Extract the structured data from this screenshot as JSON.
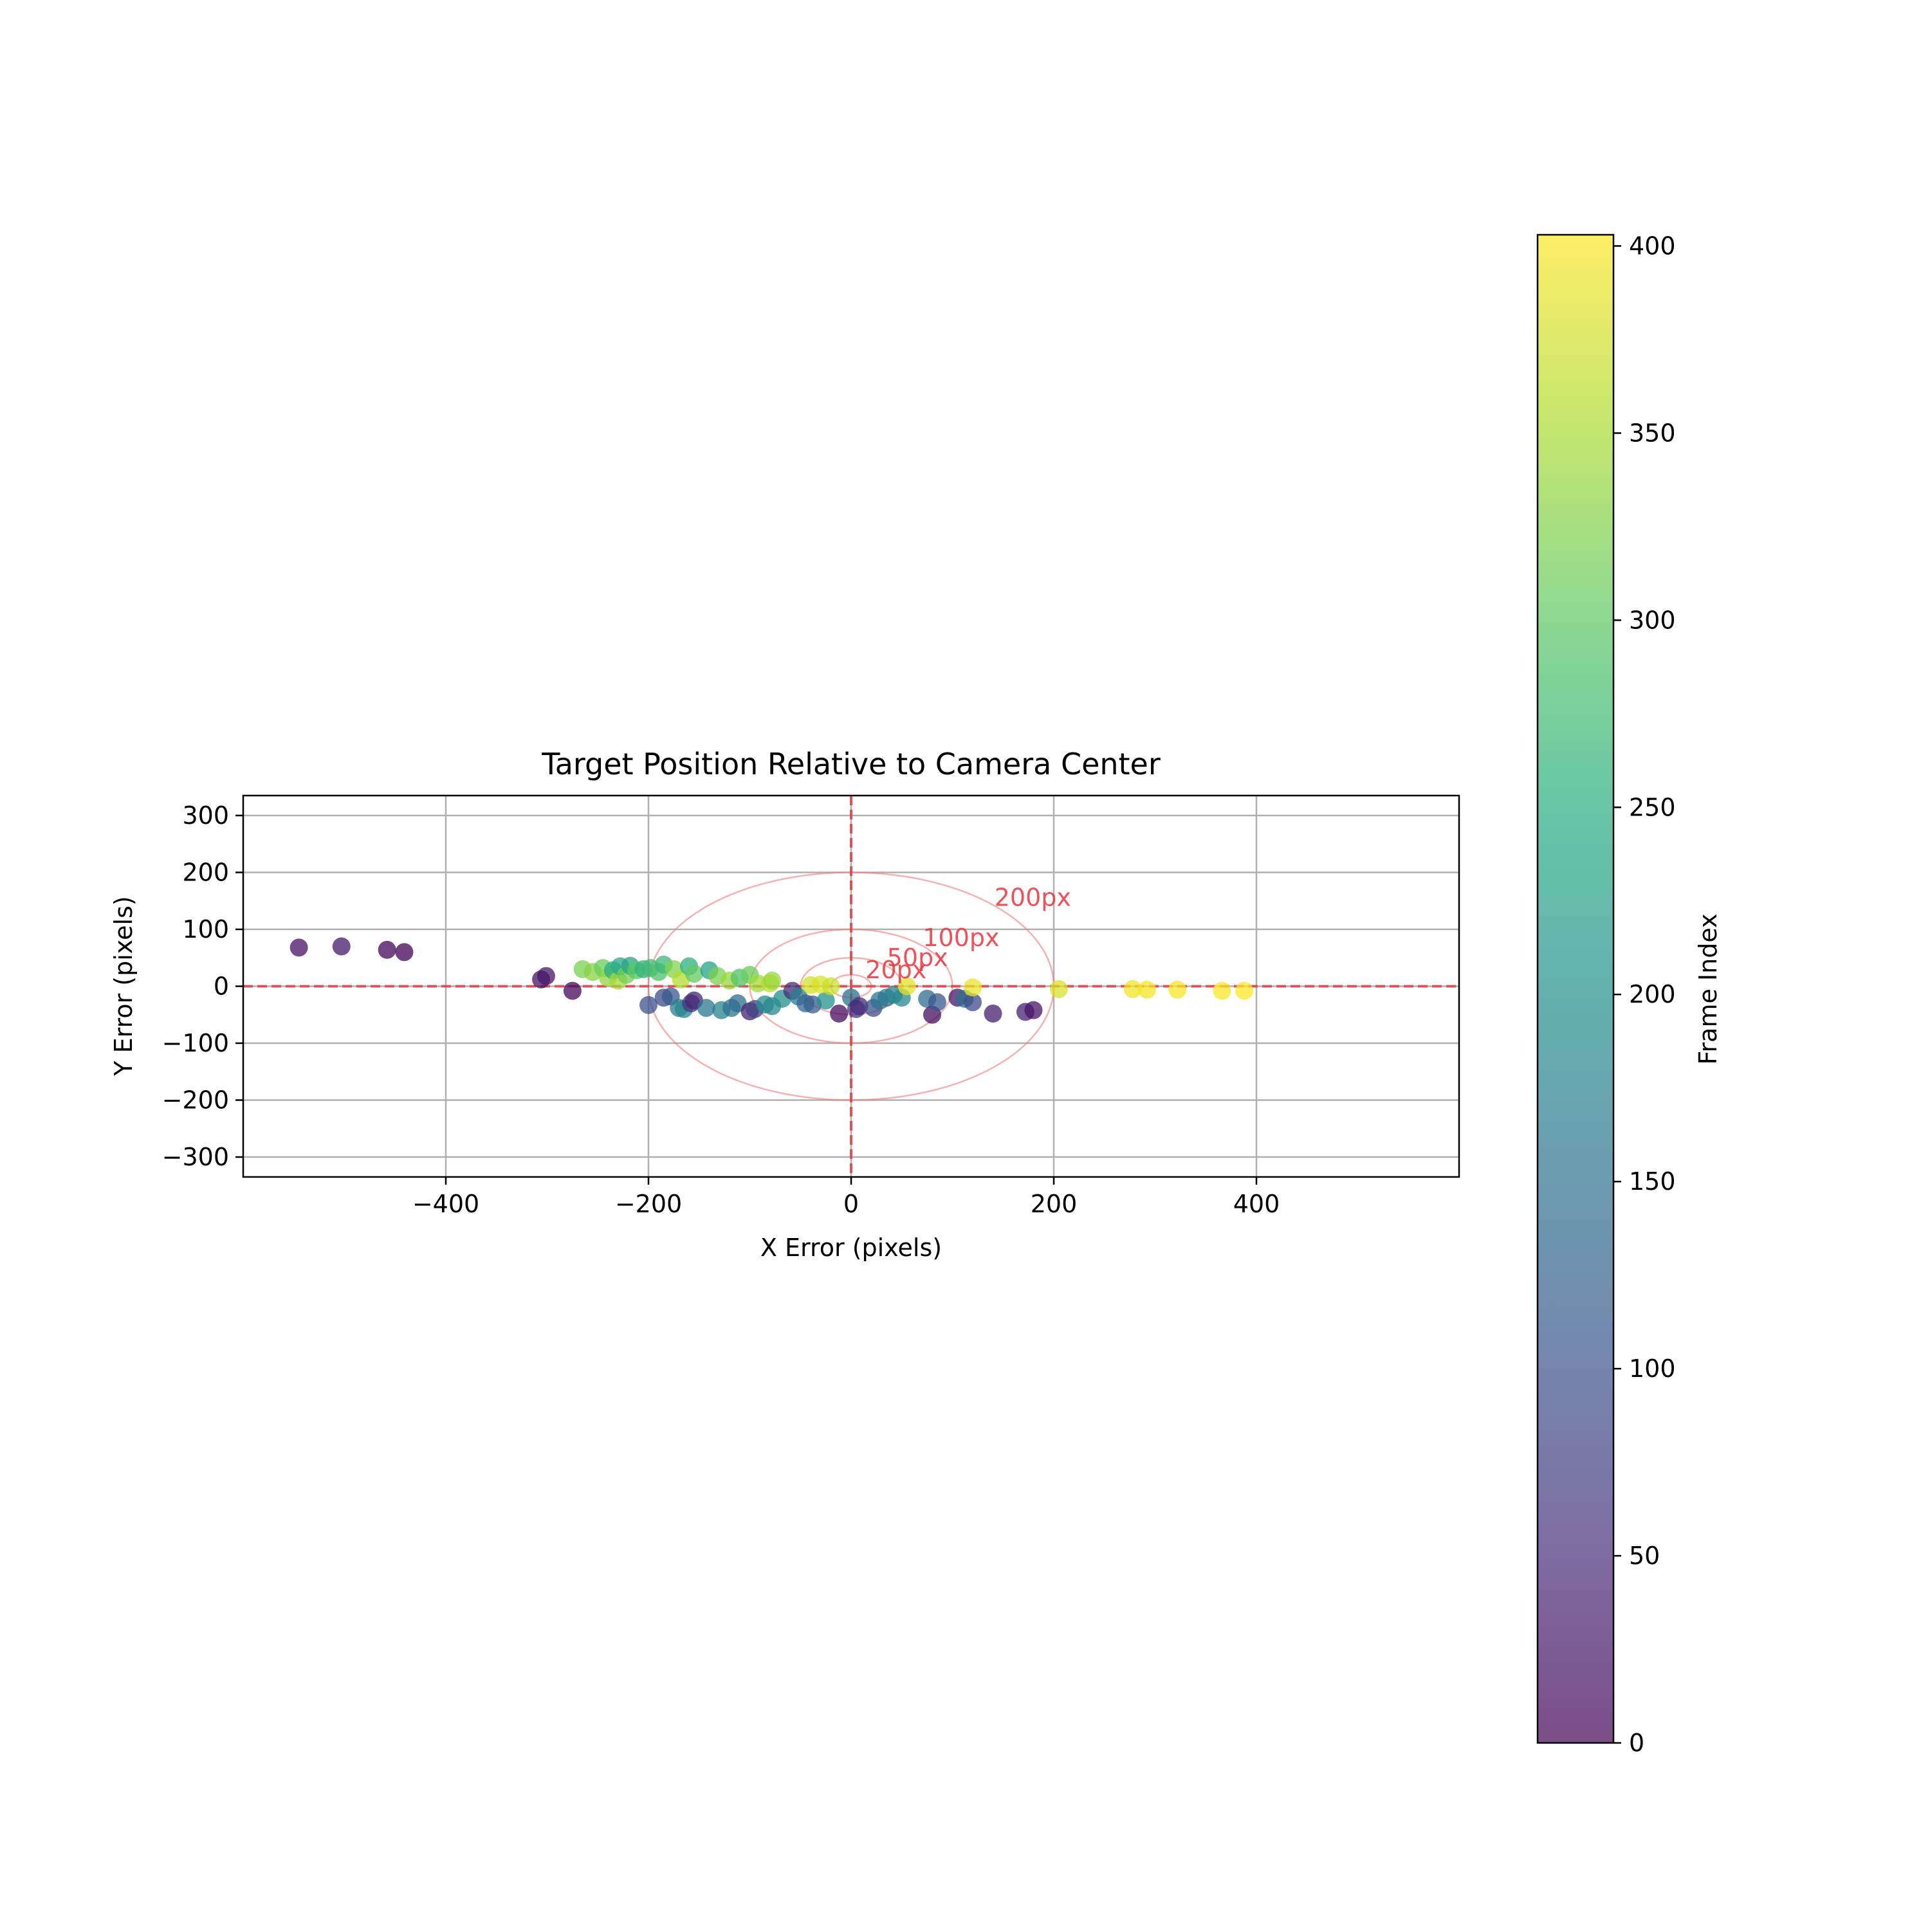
{
  "chart_data": {
    "type": "scatter",
    "title": "Target Position Relative to Camera Center",
    "xlabel": "X Error (pixels)",
    "ylabel": "Y Error (pixels)",
    "xlim": [
      -600,
      600
    ],
    "ylim": [
      -335,
      335
    ],
    "xticks": [
      -400,
      -200,
      0,
      200,
      400
    ],
    "yticks": [
      -300,
      -200,
      -100,
      0,
      100,
      200,
      300
    ],
    "xtick_labels": [
      "−400",
      "−200",
      "0",
      "200",
      "400"
    ],
    "ytick_labels": [
      "−300",
      "−200",
      "−100",
      "0",
      "100",
      "200",
      "300"
    ],
    "grid": true,
    "center_lines": {
      "x": 0,
      "y": 0,
      "color": "#e8343c",
      "style": "dashed"
    },
    "circles": [
      {
        "radius": 20,
        "label": "20px"
      },
      {
        "radius": 50,
        "label": "50px"
      },
      {
        "radius": 100,
        "label": "100px"
      },
      {
        "radius": 200,
        "label": "200px"
      }
    ],
    "circle_color": "#f47a7a",
    "colormap": "viridis",
    "colorbar": {
      "label": "Frame Index",
      "min": 0,
      "max": 403,
      "ticks": [
        0,
        50,
        100,
        150,
        200,
        250,
        300,
        350,
        400
      ],
      "tick_labels": [
        "0",
        "50",
        "100",
        "150",
        "200",
        "250",
        "300",
        "350",
        "400"
      ]
    },
    "points": [
      {
        "x": -545,
        "y": 68,
        "frame": 20
      },
      {
        "x": -503,
        "y": 70,
        "frame": 30
      },
      {
        "x": -458,
        "y": 64,
        "frame": 5
      },
      {
        "x": -441,
        "y": 60,
        "frame": 2
      },
      {
        "x": -306,
        "y": 12,
        "frame": 18
      },
      {
        "x": -301,
        "y": 18,
        "frame": 25
      },
      {
        "x": -275,
        "y": -8,
        "frame": 8
      },
      {
        "x": -200,
        "y": -33,
        "frame": 100
      },
      {
        "x": -185,
        "y": -20,
        "frame": 90
      },
      {
        "x": -178,
        "y": -18,
        "frame": 110
      },
      {
        "x": -170,
        "y": -38,
        "frame": 170
      },
      {
        "x": -165,
        "y": -40,
        "frame": 180
      },
      {
        "x": -158,
        "y": -30,
        "frame": 60
      },
      {
        "x": -155,
        "y": -25,
        "frame": 40
      },
      {
        "x": -143,
        "y": -38,
        "frame": 160
      },
      {
        "x": -128,
        "y": -42,
        "frame": 175
      },
      {
        "x": -118,
        "y": -38,
        "frame": 150
      },
      {
        "x": -112,
        "y": -30,
        "frame": 140
      },
      {
        "x": -100,
        "y": -44,
        "frame": 35
      },
      {
        "x": -95,
        "y": -40,
        "frame": 80
      },
      {
        "x": -85,
        "y": -32,
        "frame": 190
      },
      {
        "x": -78,
        "y": -35,
        "frame": 185
      },
      {
        "x": -68,
        "y": -22,
        "frame": 195
      },
      {
        "x": -58,
        "y": -8,
        "frame": 50
      },
      {
        "x": -52,
        "y": -18,
        "frame": 165
      },
      {
        "x": -45,
        "y": -30,
        "frame": 130
      },
      {
        "x": -38,
        "y": -32,
        "frame": 120
      },
      {
        "x": -25,
        "y": -25,
        "frame": 200
      },
      {
        "x": -12,
        "y": -48,
        "frame": 12
      },
      {
        "x": 0,
        "y": -20,
        "frame": 145
      },
      {
        "x": 5,
        "y": -40,
        "frame": 70
      },
      {
        "x": 8,
        "y": -35,
        "frame": 45
      },
      {
        "x": 22,
        "y": -38,
        "frame": 95
      },
      {
        "x": 28,
        "y": -25,
        "frame": 155
      },
      {
        "x": 35,
        "y": -20,
        "frame": 160
      },
      {
        "x": 42,
        "y": -15,
        "frame": 175
      },
      {
        "x": 50,
        "y": -20,
        "frame": 185
      },
      {
        "x": 75,
        "y": -22,
        "frame": 140
      },
      {
        "x": 80,
        "y": -50,
        "frame": 15
      },
      {
        "x": 85,
        "y": -28,
        "frame": 110
      },
      {
        "x": 105,
        "y": -20,
        "frame": 25
      },
      {
        "x": 112,
        "y": -22,
        "frame": 150
      },
      {
        "x": 120,
        "y": -28,
        "frame": 90
      },
      {
        "x": 140,
        "y": -48,
        "frame": 32
      },
      {
        "x": 172,
        "y": -45,
        "frame": 38
      },
      {
        "x": 180,
        "y": -42,
        "frame": 22
      },
      {
        "x": -265,
        "y": 30,
        "frame": 320
      },
      {
        "x": -255,
        "y": 25,
        "frame": 330
      },
      {
        "x": -245,
        "y": 32,
        "frame": 310
      },
      {
        "x": -240,
        "y": 15,
        "frame": 335
      },
      {
        "x": -235,
        "y": 28,
        "frame": 250
      },
      {
        "x": -230,
        "y": 10,
        "frame": 345
      },
      {
        "x": -228,
        "y": 35,
        "frame": 240
      },
      {
        "x": -222,
        "y": 20,
        "frame": 315
      },
      {
        "x": -218,
        "y": 36,
        "frame": 235
      },
      {
        "x": -212,
        "y": 28,
        "frame": 300
      },
      {
        "x": -205,
        "y": 30,
        "frame": 260
      },
      {
        "x": -198,
        "y": 32,
        "frame": 275
      },
      {
        "x": -190,
        "y": 25,
        "frame": 285
      },
      {
        "x": -185,
        "y": 38,
        "frame": 270
      },
      {
        "x": -175,
        "y": 30,
        "frame": 325
      },
      {
        "x": -168,
        "y": 12,
        "frame": 355
      },
      {
        "x": -160,
        "y": 35,
        "frame": 255
      },
      {
        "x": -155,
        "y": 22,
        "frame": 305
      },
      {
        "x": -140,
        "y": 28,
        "frame": 230
      },
      {
        "x": -132,
        "y": 18,
        "frame": 320
      },
      {
        "x": -120,
        "y": 10,
        "frame": 340
      },
      {
        "x": -110,
        "y": 15,
        "frame": 290
      },
      {
        "x": -100,
        "y": 20,
        "frame": 310
      },
      {
        "x": -92,
        "y": 5,
        "frame": 345
      },
      {
        "x": -80,
        "y": 5,
        "frame": 360
      },
      {
        "x": -78,
        "y": 10,
        "frame": 340
      },
      {
        "x": -40,
        "y": 2,
        "frame": 375
      },
      {
        "x": -30,
        "y": 3,
        "frame": 380
      },
      {
        "x": -20,
        "y": 0,
        "frame": 370
      },
      {
        "x": 55,
        "y": 0,
        "frame": 385
      },
      {
        "x": 120,
        "y": -2,
        "frame": 390
      },
      {
        "x": 205,
        "y": -5,
        "frame": 380
      },
      {
        "x": 278,
        "y": -5,
        "frame": 395
      },
      {
        "x": 292,
        "y": -6,
        "frame": 398
      },
      {
        "x": 322,
        "y": -6,
        "frame": 400
      },
      {
        "x": 366,
        "y": -8,
        "frame": 402
      },
      {
        "x": 388,
        "y": -8,
        "frame": 403
      }
    ]
  }
}
